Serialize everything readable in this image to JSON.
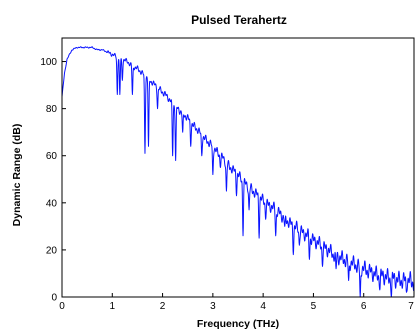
{
  "chart_data": {
    "type": "line",
    "title": "Pulsed Terahertz",
    "xlabel": "Frequency (THz)",
    "ylabel": "Dynamic Range (dB)",
    "xlim": [
      0,
      7
    ],
    "ylim": [
      0,
      110
    ],
    "xticks": [
      "0",
      "1",
      "2",
      "3",
      "4",
      "5",
      "6",
      "7"
    ],
    "yticks": [
      "0",
      "20",
      "40",
      "60",
      "80",
      "100"
    ],
    "grid": false,
    "legend": "none",
    "series": [
      {
        "color": "#0a14ff",
        "x": [
          0.0,
          0.02,
          0.05,
          0.1,
          0.15,
          0.2,
          0.3,
          0.4,
          0.5,
          0.6,
          0.7,
          0.8,
          0.9,
          1.0,
          1.1,
          1.2,
          1.3,
          1.4,
          1.5,
          1.6,
          1.7,
          1.8,
          1.9,
          2.0,
          2.1,
          2.2,
          2.3,
          2.4,
          2.5,
          2.6,
          2.7,
          2.8,
          2.9,
          3.0,
          3.1,
          3.2,
          3.3,
          3.4,
          3.5,
          3.6,
          3.7,
          3.8,
          3.9,
          4.0,
          4.1,
          4.2,
          4.3,
          4.4,
          4.5,
          4.6,
          4.7,
          4.8,
          4.9,
          5.0,
          5.1,
          5.2,
          5.3,
          5.4,
          5.5,
          5.6,
          5.7,
          5.8,
          5.9,
          6.0,
          6.1,
          6.2,
          6.3,
          6.4,
          6.5,
          6.6,
          6.7,
          6.8,
          6.9,
          7.0
        ],
        "y": [
          85,
          89,
          95,
          101,
          103,
          105,
          106,
          106,
          106,
          106,
          105,
          105,
          104,
          103,
          102,
          101,
          100,
          98,
          97,
          95,
          93,
          91,
          89,
          87,
          85,
          82,
          80,
          78,
          76,
          73,
          71,
          68,
          66,
          64,
          61,
          59,
          56,
          54,
          52,
          49,
          47,
          45,
          43,
          41,
          39,
          38,
          36,
          34,
          32,
          30,
          29,
          27,
          26,
          24,
          23,
          21,
          20,
          18,
          17,
          16,
          15,
          14,
          13,
          12,
          11,
          10,
          9,
          9,
          8,
          8,
          7,
          7,
          7,
          6
        ]
      }
    ],
    "absorption_lines": [
      {
        "x": 1.1,
        "y": 86
      },
      {
        "x": 1.15,
        "y": 86
      },
      {
        "x": 1.2,
        "y": 92
      },
      {
        "x": 1.4,
        "y": 86
      },
      {
        "x": 1.65,
        "y": 61
      },
      {
        "x": 1.72,
        "y": 64
      },
      {
        "x": 1.9,
        "y": 80
      },
      {
        "x": 2.2,
        "y": 60
      },
      {
        "x": 2.26,
        "y": 58
      },
      {
        "x": 2.4,
        "y": 70
      },
      {
        "x": 2.56,
        "y": 64
      },
      {
        "x": 2.78,
        "y": 60
      },
      {
        "x": 3.0,
        "y": 52
      },
      {
        "x": 3.15,
        "y": 55
      },
      {
        "x": 3.27,
        "y": 45
      },
      {
        "x": 3.47,
        "y": 43
      },
      {
        "x": 3.6,
        "y": 26
      },
      {
        "x": 3.72,
        "y": 37
      },
      {
        "x": 3.92,
        "y": 25
      },
      {
        "x": 4.05,
        "y": 33
      },
      {
        "x": 4.25,
        "y": 26
      },
      {
        "x": 4.43,
        "y": 30
      },
      {
        "x": 4.6,
        "y": 18
      },
      {
        "x": 4.72,
        "y": 22
      },
      {
        "x": 4.92,
        "y": 16
      },
      {
        "x": 5.18,
        "y": 13
      },
      {
        "x": 5.45,
        "y": 12
      },
      {
        "x": 5.7,
        "y": 7
      },
      {
        "x": 5.93,
        "y": 0
      },
      {
        "x": 6.32,
        "y": 3
      },
      {
        "x": 6.55,
        "y": 0
      },
      {
        "x": 6.85,
        "y": 2
      }
    ]
  }
}
